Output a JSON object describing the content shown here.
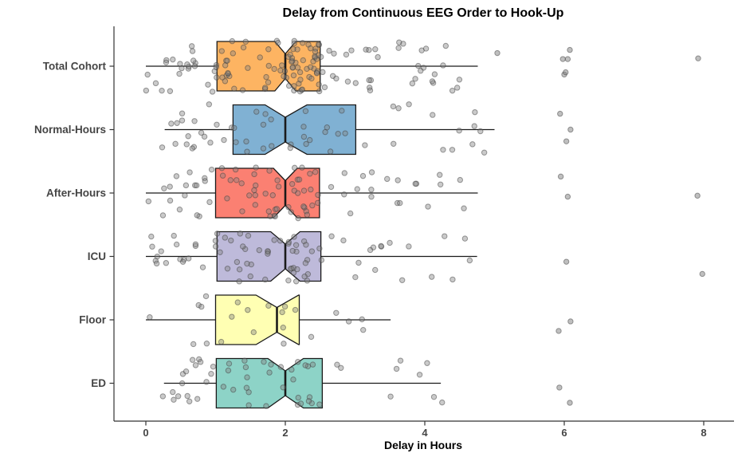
{
  "title": "Delay from Continuous EEG Order to Hook-Up",
  "x_axis": {
    "label": "Delay in Hours",
    "ticks": [
      0,
      2,
      4,
      6,
      8
    ],
    "range": [
      -0.2,
      8.5
    ]
  },
  "y_axis": {
    "categories": [
      "Total Cohort",
      "Normal-Hours",
      "After-Hours",
      "ICU",
      "Floor",
      "ED"
    ]
  },
  "point_style": {
    "fill": "#808080",
    "stroke": "#404040",
    "fill_opacity": 0.42,
    "stroke_opacity": 0.5
  },
  "box_style": {
    "border": "#1a1a1a"
  },
  "chart_data": {
    "type": "boxplot",
    "orientation": "horizontal",
    "notched": true,
    "overlay": "jittered raw data points",
    "title": "Delay from Continuous EEG Order to Hook-Up",
    "xlabel": "Delay in Hours",
    "ylabel": "",
    "xlim": [
      -0.2,
      8.5
    ],
    "grid": false,
    "jitter_seed": 7,
    "groups": [
      {
        "label": "Total Cohort",
        "color": "#FDB462",
        "whisker_low": 0.0,
        "q1": 1.02,
        "median": 2.0,
        "q3": 2.5,
        "whisker_high": 4.76,
        "notch": [
          1.85,
          2.15
        ],
        "n_points": 140,
        "far_points": [
          5.04,
          5.98,
          6.0,
          6.02,
          6.05,
          6.08,
          7.92
        ]
      },
      {
        "label": "Normal-Hours",
        "color": "#80B1D3",
        "whisker_low": 0.27,
        "q1": 1.25,
        "median": 2.0,
        "q3": 3.01,
        "whisker_high": 5.0,
        "notch": [
          1.71,
          2.31
        ],
        "n_points": 55,
        "far_points": [
          5.94,
          6.03,
          6.09
        ]
      },
      {
        "label": "After-Hours",
        "color": "#FB8072",
        "whisker_low": 0.0,
        "q1": 1.0,
        "median": 2.0,
        "q3": 2.49,
        "whisker_high": 4.76,
        "notch": [
          1.83,
          2.17
        ],
        "n_points": 85,
        "far_points": [
          5.95,
          6.05,
          7.91
        ]
      },
      {
        "label": "ICU",
        "color": "#BEBADA",
        "whisker_low": 0.0,
        "q1": 1.02,
        "median": 2.0,
        "q3": 2.51,
        "whisker_high": 4.75,
        "notch": [
          1.79,
          2.21
        ],
        "n_points": 80,
        "far_points": [
          6.03,
          7.98
        ]
      },
      {
        "label": "Floor",
        "color": "#FFFFB3",
        "whisker_low": 0.0,
        "q1": 1.0,
        "median": 1.88,
        "q3": 2.2,
        "whisker_high": 3.51,
        "notch": [
          1.58,
          2.19
        ],
        "n_points": 22,
        "far_points": [
          5.92,
          6.09
        ]
      },
      {
        "label": "ED",
        "color": "#8DD3C7",
        "whisker_low": 0.26,
        "q1": 1.01,
        "median": 2.0,
        "q3": 2.53,
        "whisker_high": 4.23,
        "notch": [
          1.75,
          2.26
        ],
        "n_points": 55,
        "far_points": [
          5.93,
          6.08
        ]
      }
    ]
  }
}
